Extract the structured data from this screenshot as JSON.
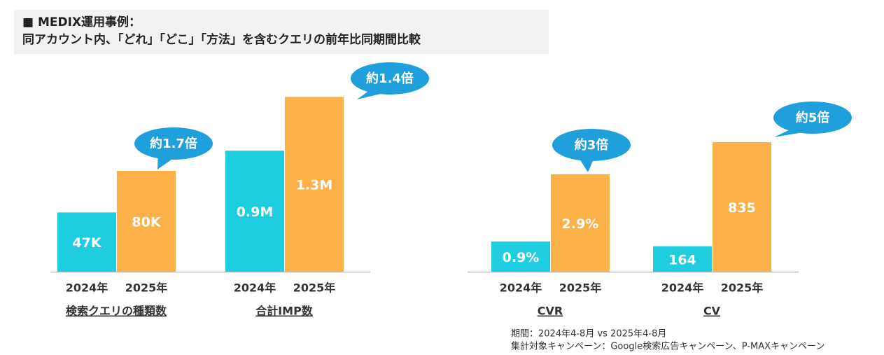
{
  "header": {
    "line1": "■ MEDIX運用事例：",
    "line2": "同アカウント内、「どれ」「どこ」「方法」を含むクエリの前年比同期間比較"
  },
  "chart_data": [
    {
      "type": "bar",
      "x_label": "検索クエリの種類数",
      "categories": [
        "2024年",
        "2025年"
      ],
      "values": [
        47000,
        80000
      ],
      "value_labels": [
        "47K",
        "80K"
      ],
      "colors": [
        "#1fcde0",
        "#fbb147"
      ],
      "ylim": [
        0,
        160000
      ],
      "annotation": "約1.7倍"
    },
    {
      "type": "bar",
      "x_label": "合計IMP数",
      "categories": [
        "2024年",
        "2025年"
      ],
      "values": [
        900000,
        1300000
      ],
      "value_labels": [
        "0.9M",
        "1.3M"
      ],
      "colors": [
        "#1fcde0",
        "#fbb147"
      ],
      "ylim": [
        0,
        1500000
      ],
      "annotation": "約1.4倍"
    },
    {
      "type": "bar",
      "x_label": "CVR",
      "categories": [
        "2024年",
        "2025年"
      ],
      "values": [
        0.9,
        2.9
      ],
      "value_labels": [
        "0.9%",
        "2.9%"
      ],
      "colors": [
        "#1fcde0",
        "#fbb147"
      ],
      "ylim": [
        0,
        6
      ],
      "annotation": "約3倍"
    },
    {
      "type": "bar",
      "x_label": "CV",
      "categories": [
        "2024年",
        "2025年"
      ],
      "values": [
        164,
        835
      ],
      "colors": [
        "#1fcde0",
        "#fbb147"
      ],
      "ylim": [
        0,
        1300
      ],
      "annotation": "約5倍"
    }
  ],
  "notes": [
    "期間：2024年4-8月 vs 2025年4-8月",
    "集計対象キャンペーン：Google検索広告キャンペーン、P-MAXキャンペーン"
  ]
}
